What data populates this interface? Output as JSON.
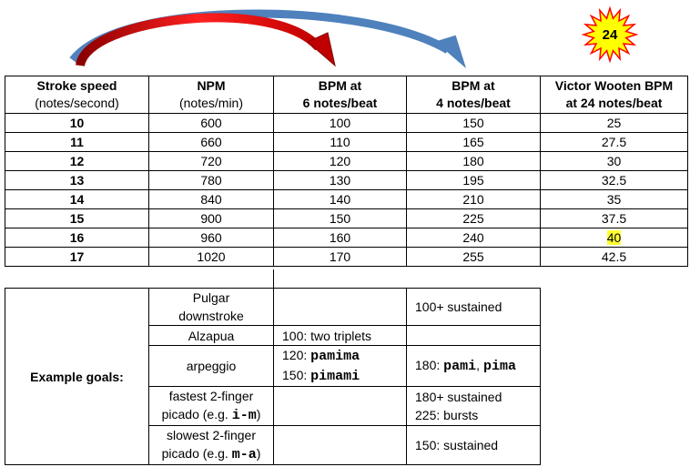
{
  "badge": "24",
  "table": {
    "header": [
      [
        "Stroke speed",
        "(notes/second)"
      ],
      [
        "NPM",
        "(notes/min)"
      ],
      [
        "BPM at",
        "6 notes/beat"
      ],
      [
        "BPM at",
        "4 notes/beat"
      ],
      [
        "Victor Wooten BPM",
        "at 24 notes/beat"
      ]
    ],
    "rows": [
      [
        10,
        600,
        100,
        150,
        25
      ],
      [
        11,
        660,
        110,
        165,
        27.5
      ],
      [
        12,
        720,
        120,
        180,
        30
      ],
      [
        13,
        780,
        130,
        195,
        32.5
      ],
      [
        14,
        840,
        140,
        210,
        35
      ],
      [
        15,
        900,
        150,
        225,
        37.5
      ],
      [
        16,
        960,
        160,
        240,
        40
      ],
      [
        17,
        1020,
        170,
        255,
        42.5
      ]
    ],
    "highlight": {
      "row": 6,
      "col": 4,
      "color": "#ffff33"
    }
  },
  "goals": {
    "label": "Example goals:",
    "items": [
      {
        "technique": [
          "Pulgar",
          "downstroke"
        ],
        "bpm6": [],
        "bpm4": [
          "100+ sustained"
        ]
      },
      {
        "technique": [
          "Alzapua"
        ],
        "bpm6": [
          "100: two triplets"
        ],
        "bpm4": []
      },
      {
        "technique": [
          "arpeggio"
        ],
        "bpm6": [
          [
            "120: ",
            {
              "code": "pamima"
            }
          ],
          [
            "150: ",
            {
              "code": "pimami"
            }
          ]
        ],
        "bpm4": [
          [
            "180: ",
            {
              "code": "pami"
            },
            ", ",
            {
              "code": "pima"
            }
          ]
        ]
      },
      {
        "technique": [
          "fastest 2-finger",
          [
            "picado (e.g. ",
            {
              "code": "i-m"
            },
            ")"
          ]
        ],
        "bpm6": [],
        "bpm4": [
          "180+ sustained",
          "225: bursts"
        ]
      },
      {
        "technique": [
          "slowest 2-finger",
          [
            "picado (e.g. ",
            {
              "code": "m-a"
            },
            ")"
          ]
        ],
        "bpm6": [],
        "bpm4": [
          "150: sustained"
        ]
      }
    ]
  }
}
